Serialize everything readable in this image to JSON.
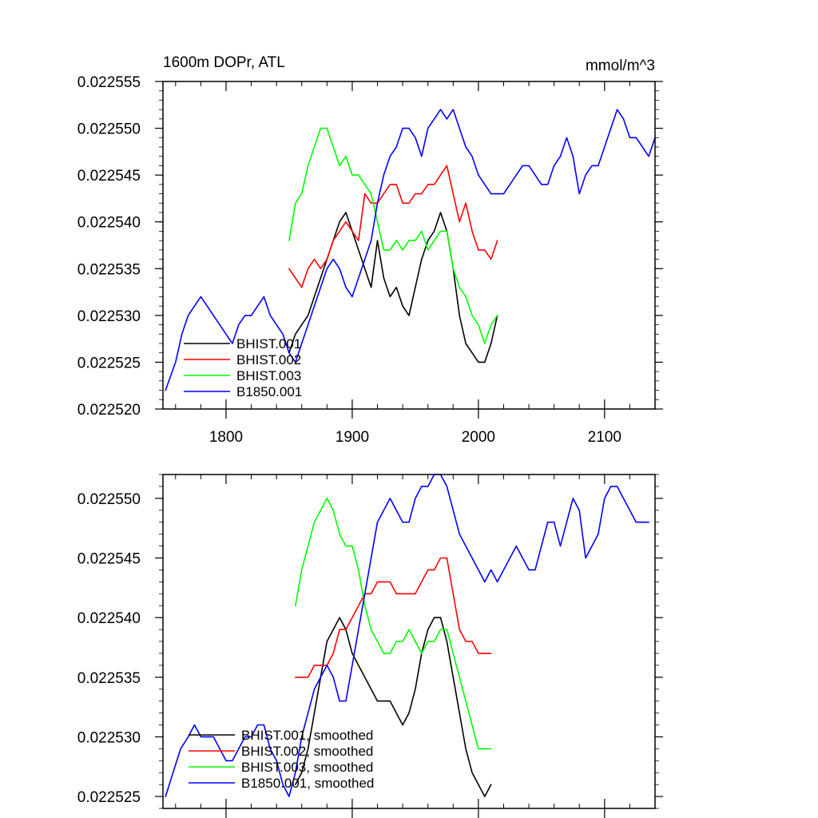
{
  "chart_data": [
    {
      "type": "line",
      "title": "1600m DOPr, ATL",
      "units": "mmol/m^3",
      "xlabel": "",
      "ylabel": "",
      "xlim": [
        1750,
        2140
      ],
      "ylim": [
        0.02252,
        0.022555
      ],
      "xticks": [
        1800,
        1900,
        2000,
        2100
      ],
      "xtick_labels": [
        "1800",
        "1900",
        "2000",
        "2100"
      ],
      "yticks": [
        0.02252,
        0.022525,
        0.02253,
        0.022535,
        0.02254,
        0.022545,
        0.02255,
        0.022555
      ],
      "ytick_labels": [
        "0.022520",
        "0.022525",
        "0.022530",
        "0.022535",
        "0.022540",
        "0.022545",
        "0.022550",
        "0.022555"
      ],
      "legend_position": "bottom-left",
      "series": [
        {
          "name": "BHIST.001",
          "color": "#000000",
          "x": [
            1850,
            1855,
            1860,
            1865,
            1870,
            1875,
            1880,
            1885,
            1890,
            1895,
            1900,
            1905,
            1910,
            1915,
            1920,
            1925,
            1930,
            1935,
            1940,
            1945,
            1950,
            1955,
            1960,
            1965,
            1970,
            1975,
            1980,
            1985,
            1990,
            1995,
            2000,
            2005,
            2010,
            2015
          ],
          "y": [
            0.022526,
            0.022528,
            0.022529,
            0.02253,
            0.022532,
            0.022534,
            0.022536,
            0.022538,
            0.02254,
            0.022541,
            0.022539,
            0.022537,
            0.022535,
            0.022533,
            0.022538,
            0.022534,
            0.022532,
            0.022533,
            0.022531,
            0.02253,
            0.022533,
            0.022536,
            0.022538,
            0.022539,
            0.022541,
            0.022539,
            0.022535,
            0.02253,
            0.022527,
            0.022526,
            0.022525,
            0.022525,
            0.022527,
            0.02253
          ]
        },
        {
          "name": "BHIST.002",
          "color": "#ff0000",
          "x": [
            1850,
            1855,
            1860,
            1865,
            1870,
            1875,
            1880,
            1885,
            1890,
            1895,
            1900,
            1905,
            1910,
            1915,
            1920,
            1925,
            1930,
            1935,
            1940,
            1945,
            1950,
            1955,
            1960,
            1965,
            1970,
            1975,
            1980,
            1985,
            1990,
            1995,
            2000,
            2005,
            2010,
            2015
          ],
          "y": [
            0.022535,
            0.022534,
            0.022533,
            0.022535,
            0.022536,
            0.022535,
            0.022536,
            0.022538,
            0.022539,
            0.02254,
            0.022539,
            0.022538,
            0.022543,
            0.022542,
            0.022542,
            0.022543,
            0.022544,
            0.022544,
            0.022542,
            0.022542,
            0.022543,
            0.022543,
            0.022544,
            0.022544,
            0.022545,
            0.022546,
            0.022543,
            0.02254,
            0.022542,
            0.022539,
            0.022537,
            0.022537,
            0.022536,
            0.022538
          ]
        },
        {
          "name": "BHIST.003",
          "color": "#00ff00",
          "x": [
            1850,
            1855,
            1860,
            1865,
            1870,
            1875,
            1880,
            1885,
            1890,
            1895,
            1900,
            1905,
            1910,
            1915,
            1920,
            1925,
            1930,
            1935,
            1940,
            1945,
            1950,
            1955,
            1960,
            1965,
            1970,
            1975,
            1980,
            1985,
            1990,
            1995,
            2000,
            2005,
            2010,
            2015
          ],
          "y": [
            0.022538,
            0.022542,
            0.022543,
            0.022546,
            0.022548,
            0.02255,
            0.02255,
            0.022548,
            0.022546,
            0.022547,
            0.022545,
            0.022545,
            0.022544,
            0.022543,
            0.02254,
            0.022537,
            0.022537,
            0.022538,
            0.022537,
            0.022538,
            0.022538,
            0.022539,
            0.022537,
            0.022538,
            0.022539,
            0.022539,
            0.022535,
            0.022533,
            0.022532,
            0.02253,
            0.022529,
            0.022527,
            0.022529,
            0.02253
          ]
        },
        {
          "name": "B1850.001",
          "color": "#0000ff",
          "x": [
            1752,
            1760,
            1765,
            1770,
            1775,
            1780,
            1785,
            1790,
            1795,
            1800,
            1805,
            1810,
            1815,
            1820,
            1825,
            1830,
            1835,
            1840,
            1845,
            1850,
            1855,
            1860,
            1865,
            1870,
            1875,
            1880,
            1885,
            1890,
            1895,
            1900,
            1905,
            1910,
            1915,
            1920,
            1925,
            1930,
            1935,
            1940,
            1945,
            1950,
            1955,
            1960,
            1965,
            1970,
            1975,
            1980,
            1985,
            1990,
            1995,
            2000,
            2005,
            2010,
            2015,
            2020,
            2025,
            2030,
            2035,
            2040,
            2045,
            2050,
            2055,
            2060,
            2065,
            2070,
            2075,
            2080,
            2085,
            2090,
            2095,
            2100,
            2105,
            2110,
            2115,
            2120,
            2125,
            2130,
            2135,
            2140
          ],
          "y": [
            0.022522,
            0.022525,
            0.022528,
            0.02253,
            0.022531,
            0.022532,
            0.022531,
            0.02253,
            0.022529,
            0.022528,
            0.022527,
            0.022529,
            0.02253,
            0.02253,
            0.022531,
            0.022532,
            0.02253,
            0.022529,
            0.022528,
            0.022526,
            0.022525,
            0.022527,
            0.022529,
            0.022531,
            0.022533,
            0.022535,
            0.022536,
            0.022535,
            0.022533,
            0.022532,
            0.022534,
            0.022536,
            0.022538,
            0.022542,
            0.022545,
            0.022547,
            0.022548,
            0.02255,
            0.02255,
            0.022549,
            0.022547,
            0.02255,
            0.022551,
            0.022552,
            0.022551,
            0.022552,
            0.02255,
            0.022548,
            0.022547,
            0.022545,
            0.022544,
            0.022543,
            0.022543,
            0.022543,
            0.022544,
            0.022545,
            0.022546,
            0.022546,
            0.022545,
            0.022544,
            0.022544,
            0.022546,
            0.022547,
            0.022549,
            0.022547,
            0.022543,
            0.022545,
            0.022546,
            0.022546,
            0.022548,
            0.02255,
            0.022552,
            0.022551,
            0.022549,
            0.022549,
            0.022548,
            0.022547,
            0.022549
          ]
        }
      ]
    },
    {
      "type": "line",
      "title": "",
      "xlabel": "",
      "ylabel": "",
      "xlim": [
        1750,
        2140
      ],
      "ylim": [
        0.022524,
        0.022552
      ],
      "xticks": [
        1800,
        1900,
        2000,
        2100
      ],
      "yticks": [
        0.022525,
        0.02253,
        0.022535,
        0.02254,
        0.022545,
        0.02255
      ],
      "ytick_labels": [
        "0.022525",
        "0.022530",
        "0.022535",
        "0.022540",
        "0.022545",
        "0.022550"
      ],
      "legend_position": "bottom-left",
      "series": [
        {
          "name": "BHIST.001, smoothed",
          "color": "#000000",
          "x": [
            1855,
            1860,
            1865,
            1870,
            1875,
            1880,
            1885,
            1890,
            1895,
            1900,
            1905,
            1910,
            1915,
            1920,
            1925,
            1930,
            1935,
            1940,
            1945,
            1950,
            1955,
            1960,
            1965,
            1970,
            1975,
            1980,
            1985,
            1990,
            1995,
            2000,
            2005,
            2010
          ],
          "y": [
            0.022526,
            0.022527,
            0.022529,
            0.022532,
            0.022535,
            0.022538,
            0.022539,
            0.02254,
            0.022539,
            0.022537,
            0.022536,
            0.022535,
            0.022534,
            0.022533,
            0.022533,
            0.022533,
            0.022532,
            0.022531,
            0.022532,
            0.022534,
            0.022537,
            0.022539,
            0.02254,
            0.02254,
            0.022538,
            0.022535,
            0.022532,
            0.022529,
            0.022527,
            0.022526,
            0.022525,
            0.022526
          ]
        },
        {
          "name": "BHIST.002, smoothed",
          "color": "#ff0000",
          "x": [
            1855,
            1860,
            1865,
            1870,
            1875,
            1880,
            1885,
            1890,
            1895,
            1900,
            1905,
            1910,
            1915,
            1920,
            1925,
            1930,
            1935,
            1940,
            1945,
            1950,
            1955,
            1960,
            1965,
            1970,
            1975,
            1980,
            1985,
            1990,
            1995,
            2000,
            2005,
            2010
          ],
          "y": [
            0.022535,
            0.022535,
            0.022535,
            0.022536,
            0.022536,
            0.022536,
            0.022537,
            0.022539,
            0.022539,
            0.02254,
            0.022541,
            0.022542,
            0.022542,
            0.022543,
            0.022543,
            0.022543,
            0.022542,
            0.022542,
            0.022542,
            0.022542,
            0.022543,
            0.022544,
            0.022544,
            0.022545,
            0.022545,
            0.022542,
            0.022539,
            0.022538,
            0.022538,
            0.022537,
            0.022537,
            0.022537
          ]
        },
        {
          "name": "BHIST.003, smoothed",
          "color": "#00ff00",
          "x": [
            1855,
            1860,
            1865,
            1870,
            1875,
            1880,
            1885,
            1890,
            1895,
            1900,
            1905,
            1910,
            1915,
            1920,
            1925,
            1930,
            1935,
            1940,
            1945,
            1950,
            1955,
            1960,
            1965,
            1970,
            1975,
            1980,
            1985,
            1990,
            1995,
            2000,
            2005,
            2010
          ],
          "y": [
            0.022541,
            0.022544,
            0.022546,
            0.022548,
            0.022549,
            0.02255,
            0.022549,
            0.022547,
            0.022546,
            0.022546,
            0.022544,
            0.022541,
            0.022539,
            0.022538,
            0.022537,
            0.022537,
            0.022538,
            0.022538,
            0.022539,
            0.022538,
            0.022537,
            0.022538,
            0.022538,
            0.022539,
            0.022539,
            0.022537,
            0.022535,
            0.022533,
            0.022531,
            0.022529,
            0.022529,
            0.022529
          ]
        },
        {
          "name": "B1850.001, smoothed",
          "color": "#0000ff",
          "x": [
            1752,
            1758,
            1764,
            1770,
            1775,
            1780,
            1785,
            1790,
            1795,
            1800,
            1805,
            1810,
            1815,
            1820,
            1825,
            1830,
            1835,
            1840,
            1845,
            1850,
            1855,
            1860,
            1865,
            1870,
            1875,
            1880,
            1885,
            1890,
            1895,
            1900,
            1905,
            1910,
            1915,
            1920,
            1925,
            1930,
            1935,
            1940,
            1945,
            1950,
            1955,
            1960,
            1965,
            1970,
            1975,
            1980,
            1985,
            1990,
            1995,
            2000,
            2005,
            2010,
            2015,
            2020,
            2025,
            2030,
            2035,
            2040,
            2045,
            2050,
            2055,
            2060,
            2065,
            2070,
            2075,
            2080,
            2085,
            2090,
            2095,
            2100,
            2105,
            2110,
            2115,
            2120,
            2125,
            2130,
            2135
          ],
          "y": [
            0.022525,
            0.022527,
            0.022529,
            0.02253,
            0.022531,
            0.02253,
            0.02253,
            0.02253,
            0.022529,
            0.022528,
            0.022528,
            0.022529,
            0.02253,
            0.02253,
            0.022531,
            0.022531,
            0.022529,
            0.022528,
            0.022526,
            0.022525,
            0.022527,
            0.02253,
            0.022532,
            0.022534,
            0.022535,
            0.022536,
            0.022535,
            0.022533,
            0.022533,
            0.022536,
            0.022539,
            0.022542,
            0.022545,
            0.022548,
            0.022549,
            0.02255,
            0.022549,
            0.022548,
            0.022548,
            0.02255,
            0.022551,
            0.022551,
            0.022552,
            0.022552,
            0.022551,
            0.022549,
            0.022547,
            0.022546,
            0.022545,
            0.022544,
            0.022543,
            0.022544,
            0.022543,
            0.022544,
            0.022545,
            0.022546,
            0.022545,
            0.022544,
            0.022544,
            0.022546,
            0.022548,
            0.022548,
            0.022546,
            0.022548,
            0.02255,
            0.022549,
            0.022545,
            0.022546,
            0.022547,
            0.02255,
            0.022551,
            0.022551,
            0.02255,
            0.022549,
            0.022548,
            0.022548,
            0.022548
          ]
        }
      ]
    }
  ]
}
